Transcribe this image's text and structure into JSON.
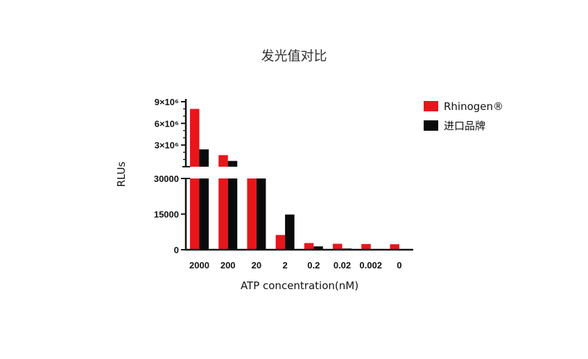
{
  "chart_data": {
    "type": "bar",
    "title": "发光值对比",
    "xlabel": "ATP concentration(nM)",
    "ylabel": "RLUs",
    "categories": [
      "2000",
      "200",
      "20",
      "2",
      "0.2",
      "0.02",
      "0.002",
      "0"
    ],
    "series": [
      {
        "name": "Rhinogen®",
        "color": "#e8161b",
        "values": [
          8000000,
          1600000,
          30000,
          6200,
          2800,
          2500,
          2400,
          2300
        ]
      },
      {
        "name": "进口品牌",
        "color": "#0a0a0a",
        "values": [
          2400000,
          800000,
          30000,
          14800,
          1400,
          500,
          300,
          300
        ]
      }
    ],
    "y_axis_broken": true,
    "lower_segment": {
      "ylim": [
        0,
        30000
      ],
      "ticks": [
        "0",
        "15000",
        "30000"
      ]
    },
    "upper_segment": {
      "ylim": [
        0,
        9000000
      ],
      "ticks": [
        "3×10⁶",
        "6×10⁶",
        "9×10⁶"
      ]
    },
    "legend_position": "top-right",
    "grid": false
  }
}
